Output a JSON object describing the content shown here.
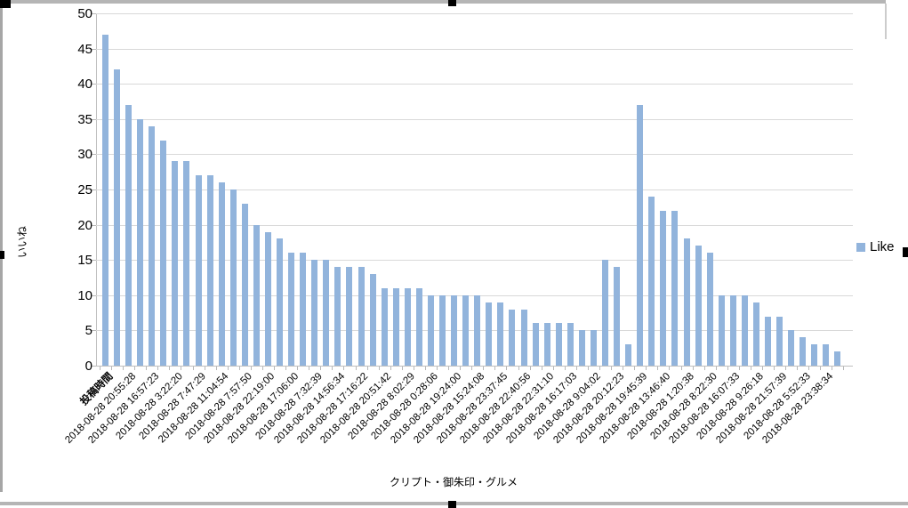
{
  "chart_data": {
    "type": "bar",
    "title": "",
    "xlabel": "クリプト・御朱印・グルメ",
    "ylabel": "いいね",
    "ylim": [
      0,
      50
    ],
    "y_ticks": [
      0,
      5,
      10,
      15,
      20,
      25,
      30,
      35,
      40,
      45,
      50
    ],
    "grid": "horizontal",
    "bar_color": "#92b4dc",
    "gridline_color": "#d9d9d9",
    "legend": {
      "label": "Like",
      "position": "right",
      "swatch_color": "#92b4dc"
    },
    "x_label_interval": 2,
    "x_tick_labels": [
      "投稿時間",
      "2018-08-28 20:55:28",
      "2018-08-28 16:57:23",
      "2018-08-28 3:22:20",
      "2018-08-28 7:47:29",
      "2018-08-28 11:04:54",
      "2018-08-28 7:57:50",
      "2018-08-28 22:19:00",
      "2018-08-28 17:06:00",
      "2018-08-28 7:32:39",
      "2018-08-28 14:56:34",
      "2018-08-28 17:16:22",
      "2018-08-28 20:51:42",
      "2018-08-28 8:02:29",
      "2018-08-28 0:28:06",
      "2018-08-28 19:24:00",
      "2018-08-28 15:24:08",
      "2018-08-28 23:37:45",
      "2018-08-28 22:40:56",
      "2018-08-28 22:31:10",
      "2018-08-28 16:17:03",
      "2018-08-28 9:04:02",
      "2018-08-28 20:12:23",
      "2018-08-28 19:45:39",
      "2018-08-28 13:46:40",
      "2018-08-28 1:20:38",
      "2018-08-28 8:22:30",
      "2018-08-28 16:07:33",
      "2018-08-28 9:26:18",
      "2018-08-28 21:57:39",
      "2018-08-28 5:52:33",
      "2018-08-28 23:38:34"
    ],
    "series": [
      {
        "name": "Like",
        "values": [
          47,
          42,
          37,
          35,
          34,
          32,
          29,
          29,
          27,
          27,
          26,
          25,
          23,
          20,
          19,
          18,
          16,
          16,
          15,
          15,
          14,
          14,
          14,
          13,
          11,
          11,
          11,
          11,
          10,
          10,
          10,
          10,
          10,
          9,
          9,
          8,
          8,
          6,
          6,
          6,
          6,
          5,
          5,
          15,
          14,
          3,
          37,
          24,
          22,
          22,
          18,
          17,
          16,
          10,
          10,
          10,
          9,
          7,
          7,
          5,
          4,
          3,
          3,
          2
        ]
      }
    ]
  }
}
